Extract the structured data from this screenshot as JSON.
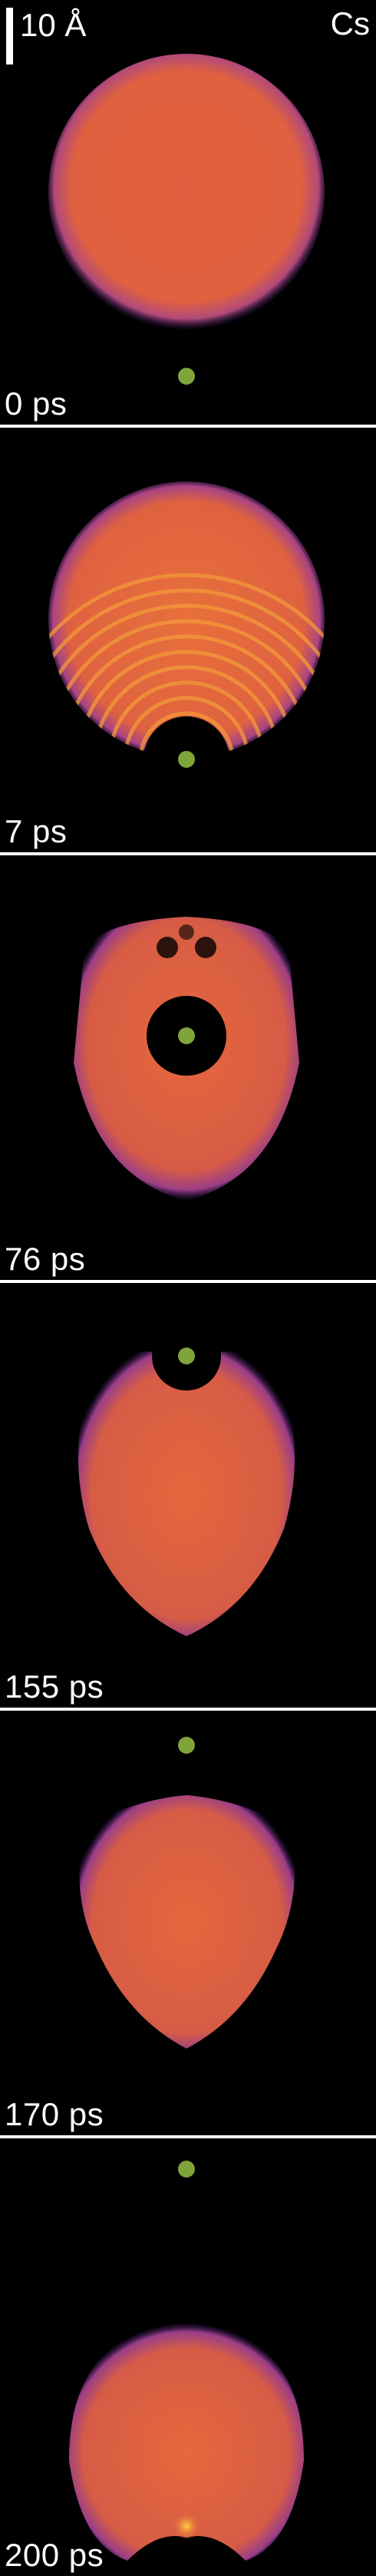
{
  "scale": {
    "label": "10 Å"
  },
  "element": {
    "label": "Cs"
  },
  "colors": {
    "background": "#000000",
    "droplet_core": "#e8683a",
    "droplet_edge": "#7a3aa8",
    "marker": "#7fa43a",
    "divider": "#ffffff"
  },
  "panels": [
    {
      "time": "0 ps"
    },
    {
      "time": "7 ps"
    },
    {
      "time": "76 ps"
    },
    {
      "time": "155 ps"
    },
    {
      "time": "170 ps"
    },
    {
      "time": "200 ps"
    }
  ]
}
